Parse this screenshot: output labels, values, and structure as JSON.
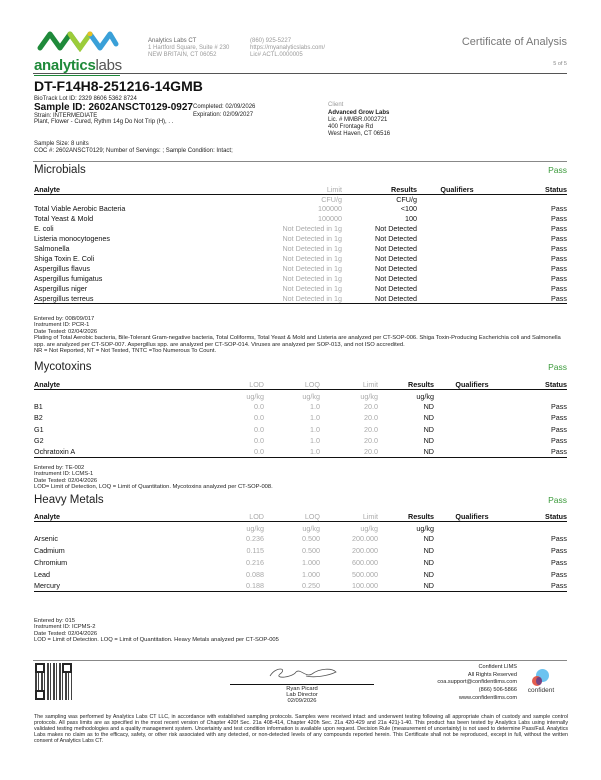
{
  "header": {
    "logo_text_bold": "analytics",
    "logo_text_light": "labs",
    "lab_name": "Analytics Labs CT",
    "lab_address1": "1 Hartford Square, Suite # 230",
    "lab_address2": "NEW BRITAIN, CT 06052",
    "phone": "(860) 925-5227",
    "website": "https://myanalyticslabs.com/",
    "license": "Lic# ACTL.0000005",
    "doc_title": "Certificate of Analysis",
    "page": "5 of 5"
  },
  "sample": {
    "title": "DT-F14H8-251216-14GMB",
    "biotrack": "BioTrack Lot ID: 2329 8606 5362 8724",
    "sample_id": "Sample ID: 2602ANSCT0129-0927",
    "completed": "Completed: 02/09/2026",
    "expiration": "Expiration: 02/09/2027",
    "strain": "Strain: INTERMEDIATE",
    "matrix": "Plant, Flower - Cured, Rythm 14g Do Not Trip (H), . .",
    "sample_size": "Sample Size: 8 units",
    "coc": "COC #: 2602ANSCT0129; Number of Servings: ; Sample Condition: Intact;"
  },
  "client": {
    "label": "Client",
    "name": "Advanced Grow Labs",
    "license": "Lic. # MMBR.0002721",
    "address1": "400 Frontage Rd",
    "address2": "West Haven, CT 06516"
  },
  "microbials": {
    "title": "Microbials",
    "status": "Pass",
    "headers": [
      "Analyte",
      "Limit",
      "Results",
      "Qualifiers",
      "Status"
    ],
    "units": [
      "",
      "CFU/g",
      "CFU/g",
      "",
      ""
    ],
    "rows": [
      [
        "Total Viable Aerobic Bacteria",
        "100000",
        "<100",
        "",
        "Pass"
      ],
      [
        "Total Yeast & Mold",
        "100000",
        "100",
        "",
        "Pass"
      ],
      [
        "E. coli",
        "Not Detected in 1g",
        "Not Detected",
        "",
        "Pass"
      ],
      [
        "Listeria monocytogenes",
        "Not Detected in 1g",
        "Not Detected",
        "",
        "Pass"
      ],
      [
        "Salmonella",
        "Not Detected in 1g",
        "Not Detected",
        "",
        "Pass"
      ],
      [
        "Shiga Toxin E. Coli",
        "Not Detected in 1g",
        "Not Detected",
        "",
        "Pass"
      ],
      [
        "Aspergillus flavus",
        "Not Detected in 1g",
        "Not Detected",
        "",
        "Pass"
      ],
      [
        "Aspergillus fumigatus",
        "Not Detected in 1g",
        "Not Detected",
        "",
        "Pass"
      ],
      [
        "Aspergillus niger",
        "Not Detected in 1g",
        "Not Detected",
        "",
        "Pass"
      ],
      [
        "Aspergillus terreus",
        "Not Detected in 1g",
        "Not Detected",
        "",
        "Pass"
      ]
    ],
    "notes": [
      "Entered by: 008/09/017",
      "Instrument ID: PCR-1",
      "Date Tested: 02/04/2026",
      "Plating of Total Aerobic bacteria, Bile-Tolerant Gram-negative bacteria, Total Coliforms, Total Yeast & Mold and Listeria are analyzed per CT-SOP-006. Shiga Toxin-Producing Escherichia coli and Salmonella spp. are analyzed per CT-SOP-007. Aspergillus spp. are analyzed per CT-SOP-014. Viruses are analyzed per SOP-013, and not ISO accredited.",
      "NR = Not Reported, NT = Not Tested, TNTC =Too Numerous To Count."
    ]
  },
  "mycotoxins": {
    "title": "Mycotoxins",
    "status": "Pass",
    "headers": [
      "Analyte",
      "LOD",
      "LOQ",
      "Limit",
      "Results",
      "Qualifiers",
      "Status"
    ],
    "units": [
      "",
      "ug/kg",
      "ug/kg",
      "ug/kg",
      "ug/kg",
      "",
      ""
    ],
    "rows": [
      [
        "B1",
        "0.0",
        "1.0",
        "20.0",
        "ND",
        "",
        "Pass"
      ],
      [
        "B2",
        "0.0",
        "1.0",
        "20.0",
        "ND",
        "",
        "Pass"
      ],
      [
        "G1",
        "0.0",
        "1.0",
        "20.0",
        "ND",
        "",
        "Pass"
      ],
      [
        "G2",
        "0.0",
        "1.0",
        "20.0",
        "ND",
        "",
        "Pass"
      ],
      [
        "Ochratoxin A",
        "0.0",
        "1.0",
        "20.0",
        "ND",
        "",
        "Pass"
      ]
    ],
    "notes": [
      "Entered by: TE-002",
      "Instrument ID: LCMS-1",
      "Date Tested: 02/04/2026",
      "LOD= Limit of Detection, LOQ = Limit of Quantitation. Mycotoxins analyzed per CT-SOP-008."
    ]
  },
  "heavy_metals": {
    "title": "Heavy Metals",
    "status": "Pass",
    "headers": [
      "Analyte",
      "LOD",
      "LOQ",
      "Limit",
      "Results",
      "Qualifiers",
      "Status"
    ],
    "units": [
      "",
      "ug/kg",
      "ug/kg",
      "ug/kg",
      "ug/kg",
      "",
      ""
    ],
    "rows": [
      [
        "Arsenic",
        "0.236",
        "0.500",
        "200.000",
        "ND",
        "",
        "Pass"
      ],
      [
        "Cadmium",
        "0.115",
        "0.500",
        "200.000",
        "ND",
        "",
        "Pass"
      ],
      [
        "Chromium",
        "0.216",
        "1.000",
        "600.000",
        "ND",
        "",
        "Pass"
      ],
      [
        "Lead",
        "0.088",
        "1.000",
        "500.000",
        "ND",
        "",
        "Pass"
      ],
      [
        "Mercury",
        "0.188",
        "0.250",
        "100.000",
        "ND",
        "",
        "Pass"
      ]
    ],
    "notes": [
      "Entered by: 015",
      "Instrument ID: ICPMS-2",
      "Date Tested: 02/04/2026",
      "LOD = Limit of Detection. LOQ = Limit of Quantitation. Heavy Metals analyzed per CT-SOP-005"
    ]
  },
  "footer": {
    "signer_name": "Ryan Picard",
    "signer_title": "Lab Director",
    "sign_date": "02/09/2026",
    "lims_name": "Confident LIMS",
    "rights": "All Rights Reserved",
    "email": "coa.support@confidentlims.com",
    "phone": "(866) 506-5866",
    "website": "www.confidentlims.com",
    "lims_logo_text": "confident",
    "disclaimer": "The sampling was performed by Analytics Labs CT LLC, in accordance with established sampling protocols. Samples were received intact and underwent testing following all appropriate chain of custody and sample control protocols. All pass limits are as specified in the most recent version of Chapter 420f Sec. 21a 408-414, Chapter 420h Sec. 21a 420-429 and 21a 421j-1-40. This product has been tested by Analytics Labs using internally validated testing methodologies and a quality management system. Uncertainty and test condition information is available upon request. Decision Rule (measurement of uncertainty) is not used to determine Pass/Fail. Analytics Labs makes no claim as to the efficacy, safety, or other risk associated with any detected, or non-detected levels of any compounds reported herein. This Certificate shall not be reproduced, except in full, without the written consent of Analytics Labs CT."
  },
  "colors": {
    "pass": "#3a9a3a",
    "logo_green": "#1f8a3a",
    "logo_blue": "#3aa0d8",
    "logo_yellow": "#e8c020"
  }
}
